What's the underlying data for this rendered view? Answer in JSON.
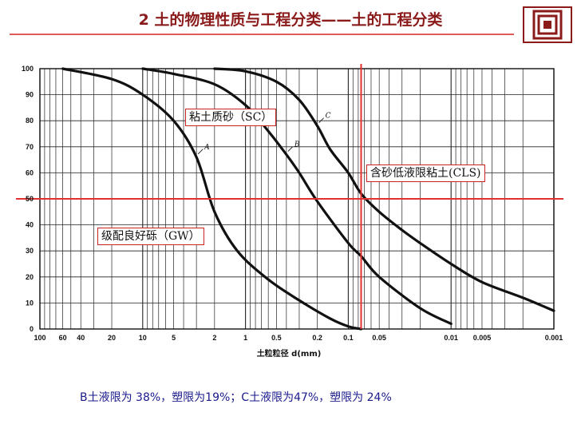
{
  "slide": {
    "title": "2 土的物理性质与工程分类——土的工程分类",
    "note": "B土液限为 38%，塑限为19%；C土液限为47%，塑限为 24%",
    "colors": {
      "title": "#8b1a1a",
      "accent": "#e03030",
      "note": "#1a1a8c",
      "logo": "#8b1a1a"
    }
  },
  "chart_data": {
    "type": "line",
    "xlabel": "土粒粒径 d(mm)",
    "ylabel": "",
    "x_scale": "log",
    "x_reversed": true,
    "xlim": [
      100,
      0.001
    ],
    "ylim": [
      0,
      100
    ],
    "grid": true,
    "x_ticks": [
      {
        "v": 100,
        "label": "100"
      },
      {
        "v": 60,
        "label": "60"
      },
      {
        "v": 40,
        "label": "40"
      },
      {
        "v": 20,
        "label": "20"
      },
      {
        "v": 10,
        "label": "10"
      },
      {
        "v": 5,
        "label": "5"
      },
      {
        "v": 2,
        "label": "2"
      },
      {
        "v": 1,
        "label": "1"
      },
      {
        "v": 0.5,
        "label": "0.5"
      },
      {
        "v": 0.2,
        "label": "0.2"
      },
      {
        "v": 0.1,
        "label": "0.1"
      },
      {
        "v": 0.05,
        "label": "0.05"
      },
      {
        "v": 0.01,
        "label": "0.01"
      },
      {
        "v": 0.005,
        "label": "0.005"
      },
      {
        "v": 0.001,
        "label": "0.001"
      }
    ],
    "y_ticks": [
      0,
      10,
      20,
      30,
      40,
      50,
      60,
      70,
      80,
      90,
      100
    ],
    "series": [
      {
        "name": "A",
        "x": [
          60,
          20,
          10,
          5,
          3,
          2,
          1.2,
          0.6,
          0.3,
          0.15,
          0.1,
          0.075
        ],
        "y": [
          100,
          96,
          90,
          80,
          66,
          45,
          30,
          19,
          11,
          4,
          1,
          0
        ]
      },
      {
        "name": "B",
        "x": [
          10,
          5,
          2,
          1,
          0.6,
          0.4,
          0.3,
          0.2,
          0.1,
          0.075,
          0.05,
          0.02,
          0.01
        ],
        "y": [
          100,
          98,
          94,
          86,
          76,
          67,
          60,
          49,
          33,
          28,
          20,
          8,
          2
        ]
      },
      {
        "name": "C",
        "x": [
          2,
          1,
          0.5,
          0.3,
          0.2,
          0.15,
          0.1,
          0.075,
          0.05,
          0.03,
          0.02,
          0.01,
          0.005,
          0.002,
          0.001
        ],
        "y": [
          100,
          99,
          95,
          88,
          78,
          69,
          60,
          52,
          45,
          38,
          33,
          25,
          18,
          12,
          7
        ]
      }
    ],
    "reference_lines": [
      {
        "axis": "y",
        "value": 50,
        "color": "#e03030"
      },
      {
        "axis": "x",
        "value": 0.075,
        "color": "#e03030"
      }
    ],
    "annotations": {
      "gw": "级配良好砾（GW）",
      "sc": "粘土质砂（SC）",
      "cls": "含砂低液限粘土(CLS)"
    }
  }
}
